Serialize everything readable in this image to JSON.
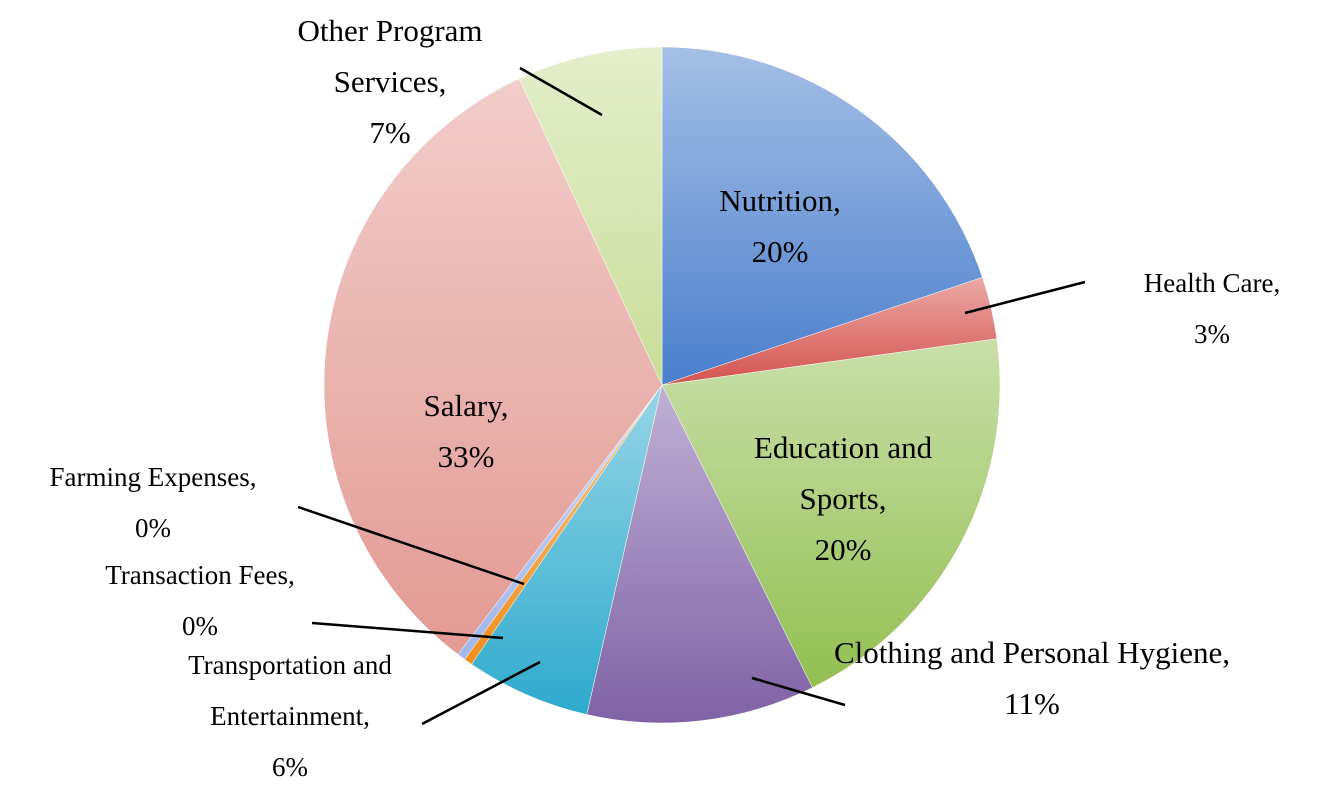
{
  "chart_data": {
    "type": "pie",
    "categories": [
      "Nutrition,",
      "Health Care,",
      "Education and Sports,",
      "Clothing and Personal Hygiene,",
      "Transportation and Entertainment,",
      "Transaction Fees,",
      "Farming Expenses,",
      "Salary,",
      "Other Program Services,"
    ],
    "values": [
      20,
      3,
      20,
      11,
      6,
      0.4,
      0.4,
      33,
      7
    ],
    "value_labels": [
      "20%",
      "3%",
      "20%",
      "11%",
      "6%",
      "0%",
      "0%",
      "33%",
      "7%"
    ],
    "colors": [
      "#4a7fcc",
      "#d4524e",
      "#93bf52",
      "#7f62a6",
      "#2eaacd",
      "#f28e1c",
      "#9fb7ec",
      "#e39a94",
      "#c9dd98"
    ]
  }
}
